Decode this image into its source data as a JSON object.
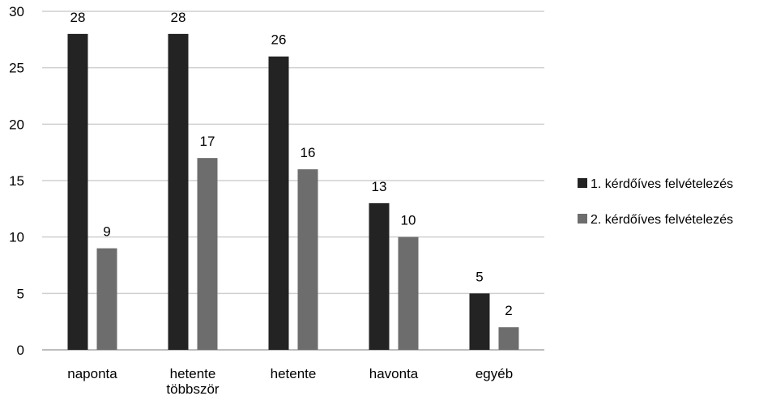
{
  "chart_data": {
    "type": "bar",
    "title": "",
    "xlabel": "",
    "ylabel": "",
    "categories": [
      [
        "naponta"
      ],
      [
        "hetente",
        "többször"
      ],
      [
        "hetente"
      ],
      [
        "havonta"
      ],
      [
        "egyéb"
      ]
    ],
    "series": [
      {
        "name": "1. kérdőíves felvételezés",
        "color": "#232323",
        "values": [
          28,
          28,
          26,
          13,
          5
        ]
      },
      {
        "name": "2. kérdőíves felvételezés",
        "color": "#6d6d6d",
        "values": [
          9,
          17,
          16,
          10,
          2
        ]
      }
    ],
    "ylim": [
      0,
      30
    ],
    "yticks": [
      0,
      5,
      10,
      15,
      20,
      25,
      30
    ],
    "grid": true,
    "legend_position": "right"
  }
}
